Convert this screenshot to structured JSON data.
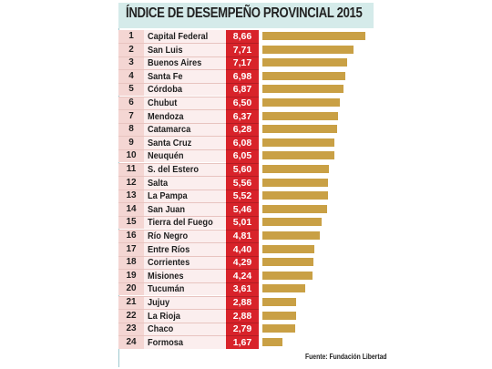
{
  "chart_data": {
    "type": "bar",
    "title": "ÍNDICE DE DESEMPEÑO PROVINCIAL 2015",
    "source": "Fuente: Fundación Libertad",
    "xlim": [
      0,
      9
    ],
    "rows": [
      {
        "rank": "1",
        "name": "Capital Federal",
        "label": "8,66",
        "value": 8.66
      },
      {
        "rank": "2",
        "name": "San Luis",
        "label": "7,71",
        "value": 7.71
      },
      {
        "rank": "3",
        "name": "Buenos Aires",
        "label": "7,17",
        "value": 7.17
      },
      {
        "rank": "4",
        "name": "Santa Fe",
        "label": "6,98",
        "value": 6.98
      },
      {
        "rank": "5",
        "name": "Córdoba",
        "label": "6,87",
        "value": 6.87
      },
      {
        "rank": "6",
        "name": "Chubut",
        "label": "6,50",
        "value": 6.5
      },
      {
        "rank": "7",
        "name": "Mendoza",
        "label": "6,37",
        "value": 6.37
      },
      {
        "rank": "8",
        "name": "Catamarca",
        "label": "6,28",
        "value": 6.28
      },
      {
        "rank": "9",
        "name": "Santa Cruz",
        "label": "6,08",
        "value": 6.08
      },
      {
        "rank": "10",
        "name": "Neuquén",
        "label": "6,05",
        "value": 6.05
      },
      {
        "rank": "11",
        "name": "S. del Estero",
        "label": "5,60",
        "value": 5.6
      },
      {
        "rank": "12",
        "name": "Salta",
        "label": "5,56",
        "value": 5.56
      },
      {
        "rank": "13",
        "name": "La Pampa",
        "label": "5,52",
        "value": 5.52
      },
      {
        "rank": "14",
        "name": "San Juan",
        "label": "5,46",
        "value": 5.46
      },
      {
        "rank": "15",
        "name": "Tierra del Fuego",
        "label": "5,01",
        "value": 5.01
      },
      {
        "rank": "16",
        "name": "Río Negro",
        "label": "4,81",
        "value": 4.81
      },
      {
        "rank": "17",
        "name": "Entre Ríos",
        "label": "4,40",
        "value": 4.4
      },
      {
        "rank": "18",
        "name": "Corrientes",
        "label": "4,29",
        "value": 4.29
      },
      {
        "rank": "19",
        "name": "Misiones",
        "label": "4,24",
        "value": 4.24
      },
      {
        "rank": "20",
        "name": "Tucumán",
        "label": "3,61",
        "value": 3.61
      },
      {
        "rank": "21",
        "name": "Jujuy",
        "label": "2,88",
        "value": 2.88
      },
      {
        "rank": "22",
        "name": "La Rioja",
        "label": "2,88",
        "value": 2.88
      },
      {
        "rank": "23",
        "name": "Chaco",
        "label": "2,79",
        "value": 2.79
      },
      {
        "rank": "24",
        "name": "Formosa",
        "label": "1,67",
        "value": 1.67
      }
    ],
    "colors": {
      "bar": "#c9a045",
      "value_column": "#d8232a",
      "header_band": "#d5ebea"
    }
  }
}
